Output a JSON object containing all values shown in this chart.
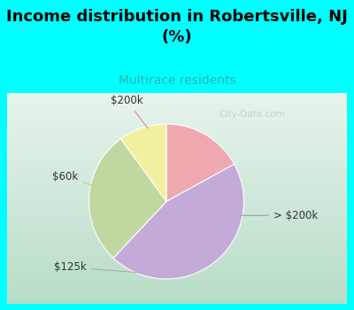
{
  "title": "Income distribution in Robertsville, NJ\n(%)",
  "subtitle": "Multirace residents",
  "title_color": "#000000",
  "subtitle_color": "#2ab5b5",
  "background_color": "#00ffff",
  "chart_bg_gradient_top": "#e0f0e8",
  "chart_bg_gradient_bottom": "#c8e8d8",
  "slices": [
    {
      "label": "> $200k",
      "value": 45,
      "color": "#c4aad8"
    },
    {
      "label": "$125k",
      "value": 28,
      "color": "#c0d8a0"
    },
    {
      "label": "$60k",
      "value": 10,
      "color": "#f0f0a0"
    },
    {
      "label": "$200k",
      "value": 17,
      "color": "#f0a8b0"
    }
  ],
  "label_fontsize": 8.5,
  "title_fontsize": 13,
  "subtitle_fontsize": 10,
  "watermark": "City-Data.com",
  "watermark_color": "#aac8c8",
  "watermark_alpha": 0.7
}
